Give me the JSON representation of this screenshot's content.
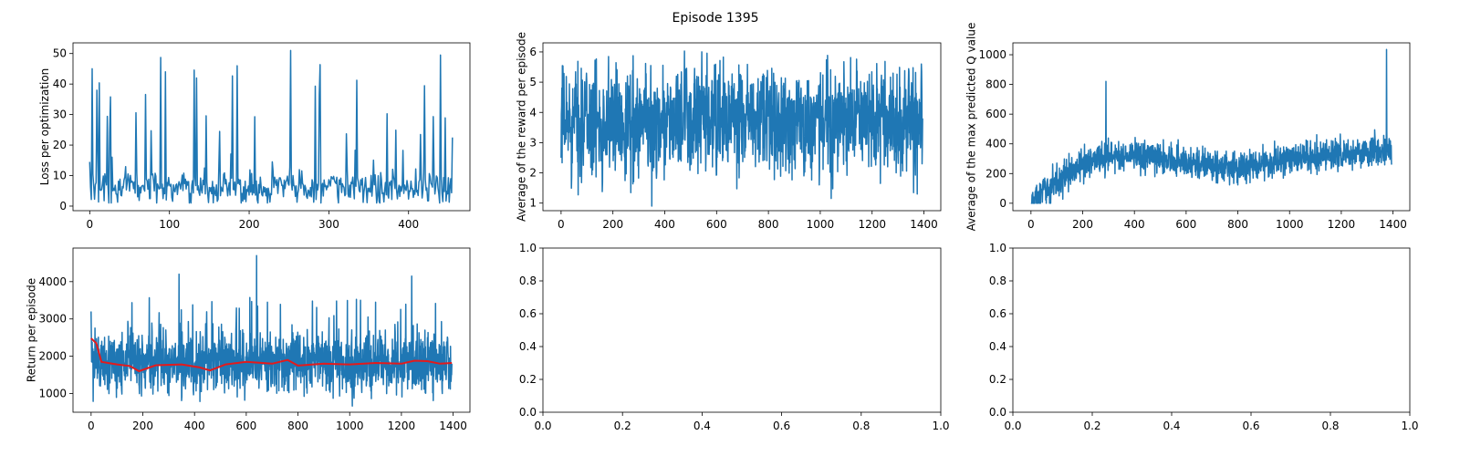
{
  "figure": {
    "suptitle": "Episode 1395"
  },
  "colors": {
    "line": "#1f77b4",
    "mean": "#e31a1c",
    "frame": "#000000"
  },
  "chart_data": [
    {
      "id": "loss",
      "type": "line",
      "title": "",
      "xlabel": "",
      "ylabel": "Loss per optimization",
      "xlim": [
        -21,
        477
      ],
      "ylim": [
        -1.5,
        53.5
      ],
      "xticks": [
        0,
        100,
        200,
        300,
        400
      ],
      "yticks": [
        0,
        10,
        20,
        30,
        40,
        50
      ],
      "series": [
        {
          "n": 455,
          "base": 6,
          "noise": 4,
          "spike_prob": 0.09,
          "spike_max": 50,
          "min": 1,
          "max": 51,
          "fixed_points": [
            [
              0,
              14.5
            ],
            [
              3,
              45
            ],
            [
              95,
              44
            ],
            [
              185,
              46
            ],
            [
              252,
              51
            ],
            [
              440,
              49.5
            ],
            [
              455,
              22.5
            ]
          ]
        }
      ]
    },
    {
      "id": "avg-reward",
      "type": "line",
      "title": "",
      "xlabel": "",
      "ylabel": "Average of the reward per episode",
      "xlim": [
        -70,
        1465
      ],
      "ylim": [
        0.75,
        6.3
      ],
      "xticks": [
        0,
        200,
        400,
        600,
        800,
        1000,
        1200,
        1400
      ],
      "yticks": [
        1,
        2,
        3,
        4,
        5,
        6
      ],
      "series": [
        {
          "n": 1395,
          "base": 3.7,
          "noise": 1.35,
          "min": 0.9,
          "max": 6.05,
          "fixed_points": [
            [
              0,
              2.5
            ],
            [
              2,
              4.2
            ],
            [
              350,
              0.9
            ],
            [
              1390,
              5.6
            ],
            [
              1395,
              3.8
            ]
          ]
        }
      ]
    },
    {
      "id": "max-q",
      "type": "line",
      "title": "",
      "xlabel": "",
      "ylabel": "Average of the max predicted Q value",
      "xlim": [
        -70,
        1465
      ],
      "ylim": [
        -50,
        1080
      ],
      "xticks": [
        0,
        200,
        400,
        600,
        800,
        1000,
        1200,
        1400
      ],
      "yticks": [
        0,
        200,
        400,
        600,
        800,
        1000
      ],
      "series": [
        {
          "n": 1395,
          "trend": [
            [
              0,
              0
            ],
            [
              100,
              150
            ],
            [
              250,
              310
            ],
            [
              400,
              320
            ],
            [
              600,
              280
            ],
            [
              800,
              230
            ],
            [
              1000,
              300
            ],
            [
              1200,
              330
            ],
            [
              1395,
              360
            ]
          ],
          "noise": 80,
          "min": 0,
          "max": 1035,
          "fixed_points": [
            [
              0,
              0
            ],
            [
              290,
              820
            ],
            [
              1375,
              1035
            ],
            [
              1395,
              260
            ]
          ]
        }
      ]
    },
    {
      "id": "return",
      "type": "line",
      "title": "",
      "xlabel": "",
      "ylabel": "Return per episode",
      "xlim": [
        -70,
        1465
      ],
      "ylim": [
        500,
        4900
      ],
      "xticks": [
        0,
        200,
        400,
        600,
        800,
        1000,
        1200,
        1400
      ],
      "yticks": [
        1000,
        2000,
        3000,
        4000
      ],
      "series": [
        {
          "n": 1395,
          "base": 1800,
          "noise": 600,
          "spike_prob": 0.06,
          "spike_max": 3600,
          "min": 650,
          "max": 4700,
          "fixed_points": [
            [
              0,
              3200
            ],
            [
              340,
              4200
            ],
            [
              640,
              4700
            ],
            [
              1240,
              4150
            ],
            [
              1395,
              1800
            ]
          ]
        }
      ],
      "mean_line": {
        "points": [
          [
            0,
            2480
          ],
          [
            20,
            2350
          ],
          [
            40,
            1850
          ],
          [
            100,
            1780
          ],
          [
            150,
            1740
          ],
          [
            185,
            1600
          ],
          [
            250,
            1760
          ],
          [
            350,
            1780
          ],
          [
            420,
            1700
          ],
          [
            460,
            1620
          ],
          [
            520,
            1780
          ],
          [
            600,
            1850
          ],
          [
            700,
            1800
          ],
          [
            760,
            1900
          ],
          [
            800,
            1750
          ],
          [
            900,
            1800
          ],
          [
            1000,
            1780
          ],
          [
            1100,
            1820
          ],
          [
            1200,
            1800
          ],
          [
            1250,
            1880
          ],
          [
            1300,
            1870
          ],
          [
            1350,
            1800
          ],
          [
            1395,
            1820
          ]
        ]
      }
    },
    {
      "id": "empty-1",
      "type": "line",
      "title": "",
      "xlabel": "",
      "ylabel": "",
      "xlim": [
        0,
        1
      ],
      "ylim": [
        0,
        1
      ],
      "xticks": [
        0.0,
        0.2,
        0.4,
        0.6,
        0.8,
        1.0
      ],
      "yticks": [
        0.0,
        0.2,
        0.4,
        0.6,
        0.8,
        1.0
      ],
      "series": []
    },
    {
      "id": "empty-2",
      "type": "line",
      "title": "",
      "xlabel": "",
      "ylabel": "",
      "xlim": [
        0,
        1
      ],
      "ylim": [
        0,
        1
      ],
      "xticks": [
        0.0,
        0.2,
        0.4,
        0.6,
        0.8,
        1.0
      ],
      "yticks": [
        0.0,
        0.2,
        0.4,
        0.6,
        0.8,
        1.0
      ],
      "series": []
    }
  ]
}
